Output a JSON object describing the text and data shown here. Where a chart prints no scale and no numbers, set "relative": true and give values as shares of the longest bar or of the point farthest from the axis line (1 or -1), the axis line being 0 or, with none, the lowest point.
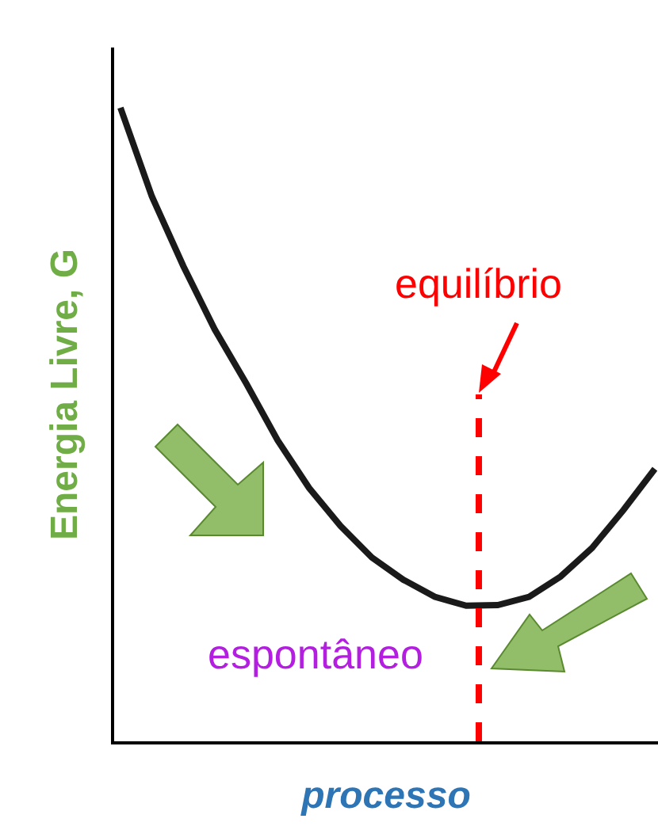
{
  "chart_data": {
    "type": "line",
    "relative": true,
    "xlabel": "processo",
    "ylabel": "Energia Livre, G",
    "categories": [
      null,
      null,
      null,
      null,
      null,
      null,
      null,
      null,
      null,
      null,
      null,
      null,
      null,
      null,
      null,
      null,
      null,
      null
    ],
    "series": [
      {
        "color": "#1a1a1a",
        "values": [
          1.0,
          0.86,
          0.75,
          0.65,
          0.565,
          0.475,
          0.4,
          0.34,
          0.29,
          0.255,
          0.228,
          0.214,
          0.215,
          0.228,
          0.26,
          0.305,
          0.365,
          0.43
        ]
      }
    ],
    "annotations": [
      "equilíbrio",
      "espontâneo"
    ],
    "marker": "none",
    "line_style": "solid"
  }
}
